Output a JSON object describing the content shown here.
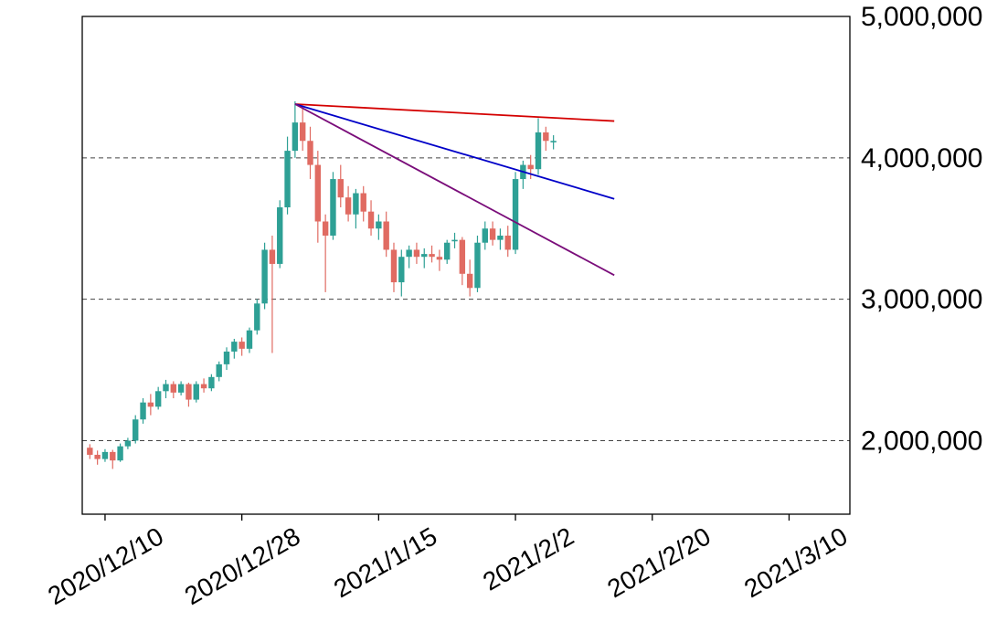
{
  "chart_data": {
    "type": "candlestick",
    "title": "",
    "background": "#ffffff",
    "y_axis": {
      "min": 1480000,
      "max": 5000000,
      "position": "right",
      "gridlines": "dashed",
      "gridline_values": [
        2000000,
        3000000,
        4000000
      ],
      "ticks": [
        {
          "value": 2000000,
          "label": "2,000,000"
        },
        {
          "value": 3000000,
          "label": "3,000,000"
        },
        {
          "value": 4000000,
          "label": "4,000,000"
        },
        {
          "value": 5000000,
          "label": "5,000,000"
        }
      ]
    },
    "x_axis": {
      "domain": [
        "2020/12/07",
        "2021/03/18"
      ],
      "label_rotation": -30,
      "ticks": [
        {
          "date": "2020/12/10",
          "label": "2020/12/10"
        },
        {
          "date": "2020/12/28",
          "label": "2020/12/28"
        },
        {
          "date": "2021/01/15",
          "label": "2021/1/15"
        },
        {
          "date": "2021/02/02",
          "label": "2021/2/2"
        },
        {
          "date": "2021/02/20",
          "label": "2021/2/20"
        },
        {
          "date": "2021/03/10",
          "label": "2021/3/10"
        }
      ]
    },
    "colors": {
      "up": "#2EA095",
      "down": "#E06B62",
      "axis": "#000000",
      "grid": "#444444",
      "trend_red": "#D40000",
      "trend_blue": "#0000C8",
      "trend_purple": "#7A0D7A"
    },
    "candle_format": [
      "date",
      "open",
      "high",
      "low",
      "close"
    ],
    "candles": [
      [
        "2020/12/08",
        1950000,
        1975000,
        1870000,
        1900000
      ],
      [
        "2020/12/09",
        1900000,
        1930000,
        1830000,
        1870000
      ],
      [
        "2020/12/10",
        1870000,
        1940000,
        1850000,
        1920000
      ],
      [
        "2020/12/11",
        1920000,
        1935000,
        1800000,
        1860000
      ],
      [
        "2020/12/12",
        1860000,
        1980000,
        1850000,
        1960000
      ],
      [
        "2020/12/13",
        1960000,
        2020000,
        1940000,
        2000000
      ],
      [
        "2020/12/14",
        2000000,
        2180000,
        1980000,
        2150000
      ],
      [
        "2020/12/15",
        2150000,
        2300000,
        2120000,
        2270000
      ],
      [
        "2020/12/16",
        2270000,
        2330000,
        2180000,
        2240000
      ],
      [
        "2020/12/17",
        2240000,
        2380000,
        2220000,
        2350000
      ],
      [
        "2020/12/18",
        2350000,
        2430000,
        2300000,
        2400000
      ],
      [
        "2020/12/19",
        2400000,
        2420000,
        2300000,
        2340000
      ],
      [
        "2020/12/20",
        2340000,
        2420000,
        2320000,
        2400000
      ],
      [
        "2020/12/21",
        2400000,
        2410000,
        2240000,
        2290000
      ],
      [
        "2020/12/22",
        2290000,
        2420000,
        2270000,
        2400000
      ],
      [
        "2020/12/23",
        2400000,
        2440000,
        2340000,
        2370000
      ],
      [
        "2020/12/24",
        2370000,
        2470000,
        2350000,
        2450000
      ],
      [
        "2020/12/25",
        2450000,
        2560000,
        2420000,
        2540000
      ],
      [
        "2020/12/26",
        2540000,
        2660000,
        2500000,
        2630000
      ],
      [
        "2020/12/27",
        2630000,
        2720000,
        2580000,
        2700000
      ],
      [
        "2020/12/28",
        2700000,
        2730000,
        2600000,
        2650000
      ],
      [
        "2020/12/29",
        2650000,
        2800000,
        2620000,
        2780000
      ],
      [
        "2020/12/30",
        2780000,
        3000000,
        2750000,
        2970000
      ],
      [
        "2020/12/31",
        2970000,
        3400000,
        2930000,
        3350000
      ],
      [
        "2021/01/01",
        3350000,
        3450000,
        2620000,
        3250000
      ],
      [
        "2021/01/02",
        3250000,
        3700000,
        3220000,
        3650000
      ],
      [
        "2021/01/03",
        3650000,
        4150000,
        3600000,
        4050000
      ],
      [
        "2021/01/04",
        4050000,
        4400000,
        4000000,
        4250000
      ],
      [
        "2021/01/05",
        4250000,
        4350000,
        4050000,
        4120000
      ],
      [
        "2021/01/06",
        4120000,
        4220000,
        3850000,
        3950000
      ],
      [
        "2021/01/07",
        3950000,
        4050000,
        3400000,
        3550000
      ],
      [
        "2021/01/08",
        3550000,
        3600000,
        3050000,
        3450000
      ],
      [
        "2021/01/09",
        3450000,
        3900000,
        3420000,
        3850000
      ],
      [
        "2021/01/10",
        3850000,
        3950000,
        3650000,
        3720000
      ],
      [
        "2021/01/11",
        3720000,
        3800000,
        3550000,
        3600000
      ],
      [
        "2021/01/12",
        3600000,
        3780000,
        3500000,
        3750000
      ],
      [
        "2021/01/13",
        3750000,
        3800000,
        3550000,
        3620000
      ],
      [
        "2021/01/14",
        3620000,
        3700000,
        3450000,
        3500000
      ],
      [
        "2021/01/15",
        3500000,
        3600000,
        3420000,
        3550000
      ],
      [
        "2021/01/16",
        3550000,
        3620000,
        3300000,
        3350000
      ],
      [
        "2021/01/17",
        3350000,
        3400000,
        3050000,
        3120000
      ],
      [
        "2021/01/18",
        3120000,
        3350000,
        3020000,
        3300000
      ],
      [
        "2021/01/19",
        3300000,
        3380000,
        3220000,
        3350000
      ],
      [
        "2021/01/20",
        3350000,
        3400000,
        3250000,
        3300000
      ],
      [
        "2021/01/21",
        3300000,
        3360000,
        3220000,
        3320000
      ],
      [
        "2021/01/22",
        3320000,
        3380000,
        3260000,
        3300000
      ],
      [
        "2021/01/23",
        3300000,
        3350000,
        3200000,
        3280000
      ],
      [
        "2021/01/24",
        3280000,
        3420000,
        3250000,
        3400000
      ],
      [
        "2021/01/25",
        3420000,
        3470000,
        3360000,
        3420000
      ],
      [
        "2021/01/26",
        3420000,
        3440000,
        3100000,
        3180000
      ],
      [
        "2021/01/27",
        3180000,
        3280000,
        3020000,
        3080000
      ],
      [
        "2021/01/28",
        3080000,
        3450000,
        3050000,
        3400000
      ],
      [
        "2021/01/29",
        3400000,
        3550000,
        3350000,
        3500000
      ],
      [
        "2021/01/30",
        3500000,
        3550000,
        3380000,
        3420000
      ],
      [
        "2021/01/31",
        3420000,
        3500000,
        3350000,
        3450000
      ],
      [
        "2021/02/01",
        3450000,
        3520000,
        3300000,
        3350000
      ],
      [
        "2021/02/02",
        3350000,
        3900000,
        3320000,
        3850000
      ],
      [
        "2021/02/03",
        3850000,
        3980000,
        3780000,
        3950000
      ],
      [
        "2021/02/04",
        3950000,
        4020000,
        3850000,
        3920000
      ],
      [
        "2021/02/05",
        3920000,
        4280000,
        3880000,
        4180000
      ],
      [
        "2021/02/06",
        4180000,
        4220000,
        4050000,
        4120000
      ],
      [
        "2021/02/07",
        4120000,
        4160000,
        4060000,
        4120000
      ]
    ],
    "trendlines": [
      {
        "name": "trendline-red",
        "color": "#D40000",
        "from": [
          "2021/01/04",
          4380000
        ],
        "to": [
          "2021/02/15",
          4260000
        ]
      },
      {
        "name": "trendline-blue",
        "color": "#0000C8",
        "from": [
          "2021/01/04",
          4380000
        ],
        "to": [
          "2021/02/15",
          3710000
        ]
      },
      {
        "name": "trendline-purple",
        "color": "#7A0D7A",
        "from": [
          "2021/01/04",
          4380000
        ],
        "to": [
          "2021/02/15",
          3170000
        ]
      }
    ]
  }
}
